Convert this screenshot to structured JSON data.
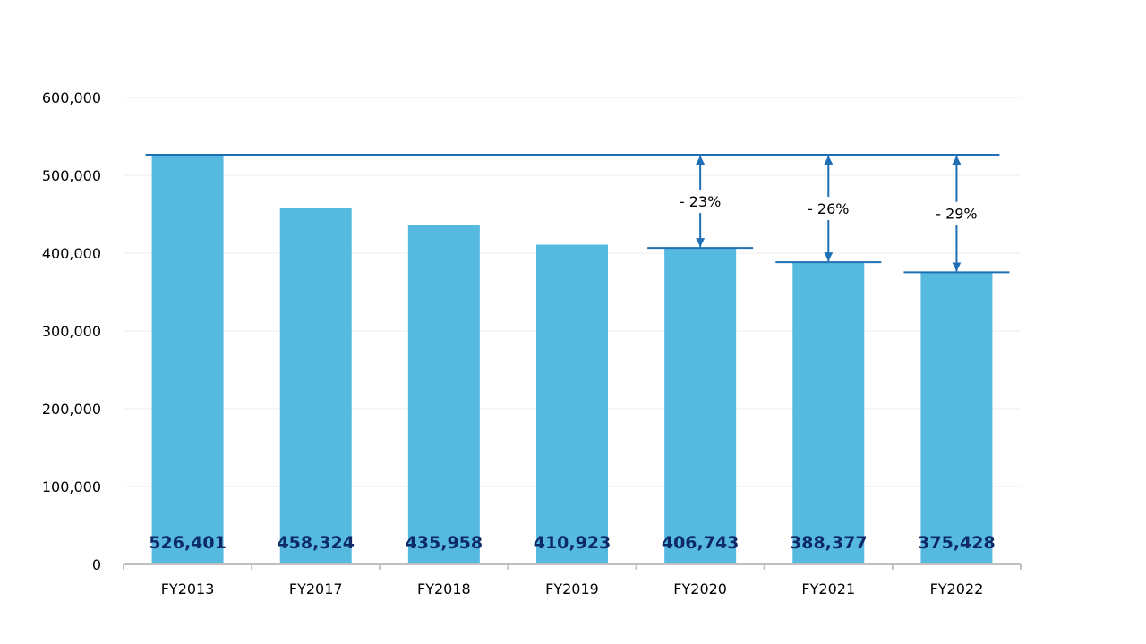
{
  "chart_data": {
    "type": "bar",
    "categories": [
      "FY2013",
      "FY2017",
      "FY2018",
      "FY2019",
      "FY2020",
      "FY2021",
      "FY2022"
    ],
    "values": [
      526401,
      458324,
      435958,
      410923,
      406743,
      388377,
      375428
    ],
    "data_labels": [
      "526,401",
      "458,324",
      "435,958",
      "410,923",
      "406,743",
      "388,377",
      "375,428"
    ],
    "ylim": [
      0,
      600000
    ],
    "y_ticks": [
      0,
      100000,
      200000,
      300000,
      400000,
      500000,
      600000
    ],
    "y_tick_labels": [
      "0",
      "100,000",
      "200,000",
      "300,000",
      "400,000",
      "500,000",
      "600,000"
    ],
    "grid": true,
    "baseline_reference": {
      "category": "FY2013",
      "value": 526401
    },
    "annotations": [
      {
        "category": "FY2020",
        "text": "- 23%"
      },
      {
        "category": "FY2021",
        "text": "- 26%"
      },
      {
        "category": "FY2022",
        "text": "- 29%"
      }
    ],
    "colors": {
      "bar": "#56b9e0",
      "line": "#1f6fb5",
      "label": "#0d2a66",
      "grid": "#eeeeee",
      "axis": "#bfbfbf"
    }
  }
}
